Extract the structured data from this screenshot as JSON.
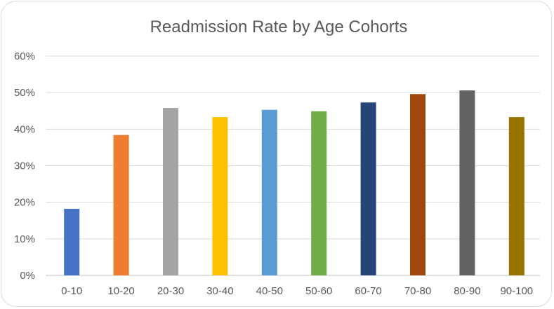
{
  "chart_data": {
    "type": "bar",
    "title": "Readmission  Rate by Age Cohorts",
    "xlabel": "",
    "ylabel": "",
    "categories": [
      "0-10",
      "10-20",
      "20-30",
      "30-40",
      "40-50",
      "50-60",
      "60-70",
      "70-80",
      "80-90",
      "90-100"
    ],
    "values": [
      18.2,
      38.4,
      45.8,
      43.3,
      45.3,
      44.9,
      47.3,
      49.6,
      50.6,
      43.3
    ],
    "colors": [
      "#4472c4",
      "#ed7d31",
      "#a5a5a5",
      "#ffc000",
      "#5b9bd5",
      "#70ad47",
      "#264478",
      "#9e480e",
      "#636363",
      "#997300"
    ],
    "ylim": [
      0,
      60
    ],
    "yticks": [
      "0%",
      "10%",
      "20%",
      "30%",
      "40%",
      "50%",
      "60%"
    ],
    "grid": true,
    "legend": "none"
  }
}
